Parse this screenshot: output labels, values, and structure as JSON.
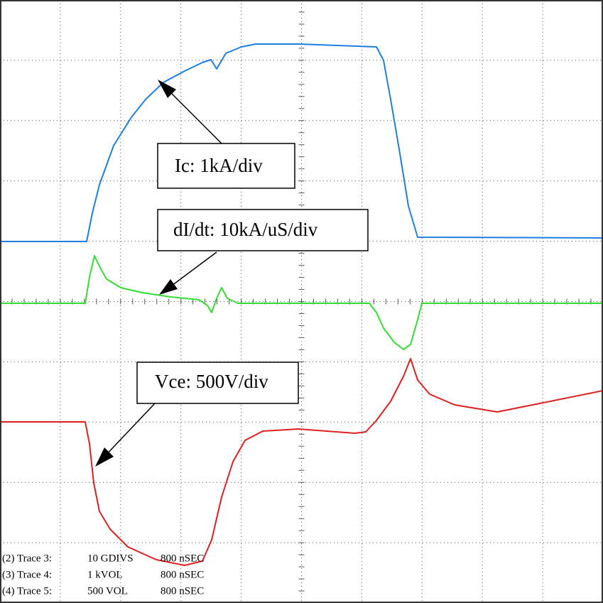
{
  "annotations": [
    {
      "label": "Ic: 1kA/div"
    },
    {
      "label": "dI/dt: 10kA/uS/div"
    },
    {
      "label": "Vce: 500V/div"
    }
  ],
  "footer": [
    {
      "trace": "(2) Trace 3:",
      "scale": "10 GDIVS",
      "time": "800 nSEC"
    },
    {
      "trace": "(3) Trace 4:",
      "scale": "1 kVOL",
      "time": "800 nSEC"
    },
    {
      "trace": "(4) Trace 5:",
      "scale": "500 VOL",
      "time": "800 nSEC"
    }
  ]
}
